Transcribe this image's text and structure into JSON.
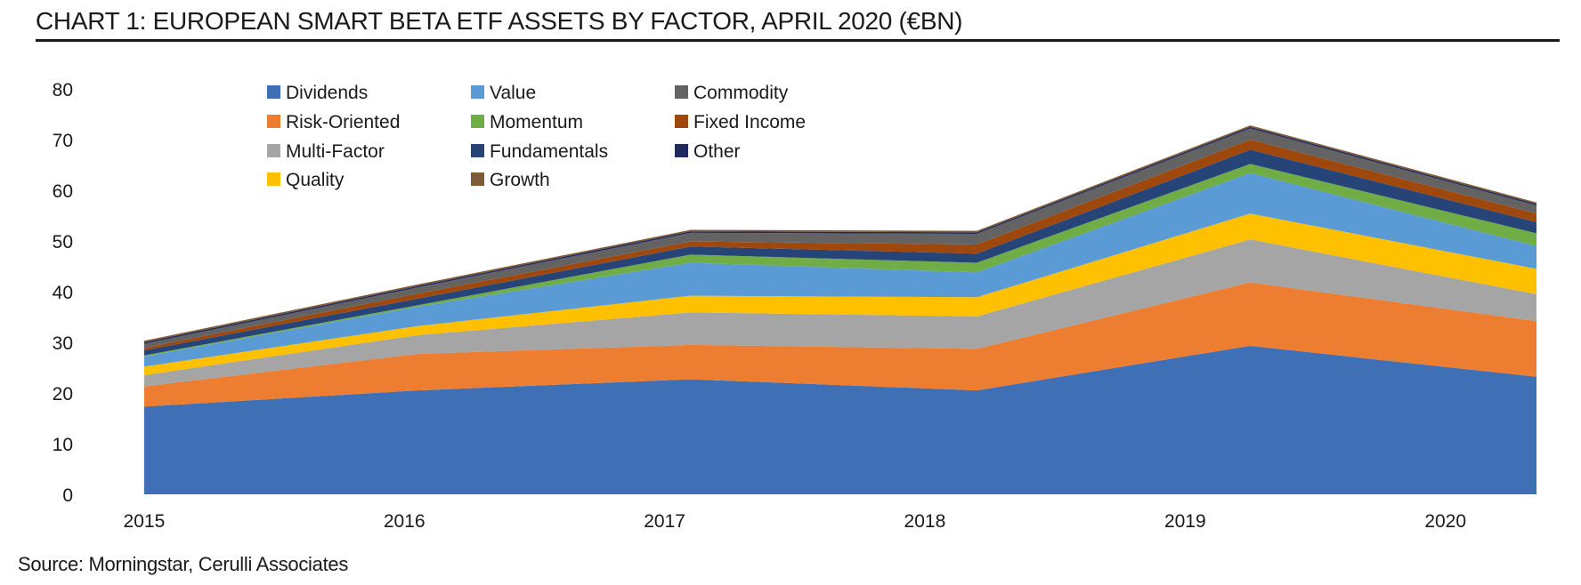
{
  "chart_data": {
    "type": "area",
    "stacked": true,
    "title": "CHART 1: EUROPEAN SMART BETA ETF ASSETS BY FACTOR, APRIL 2020 (€BN)",
    "source": "Source: Morningstar, Cerulli Associates",
    "xlabel": "",
    "ylabel": "",
    "ylim": [
      0,
      80
    ],
    "yticks": [
      0,
      10,
      20,
      30,
      40,
      50,
      60,
      70,
      80
    ],
    "ytick_labels": [
      "0",
      "10",
      "20",
      "30",
      "40",
      "50",
      "60",
      "70",
      "80"
    ],
    "x": [
      2015,
      2016.05,
      2017.1,
      2018.2,
      2019.25,
      2020.35
    ],
    "xticks": [
      2015,
      2016,
      2017,
      2018,
      2019,
      2020
    ],
    "xtick_labels": [
      "2015",
      "2016",
      "2017",
      "2018",
      "2019",
      "2020"
    ],
    "x_range": [
      2014.85,
      2020.35
    ],
    "grid": false,
    "legend_position": "top-left",
    "series": [
      {
        "name": "Dividends",
        "color": "#3F6FB5",
        "values": [
          17.3,
          20.5,
          22.7,
          20.5,
          29.3,
          23.2
        ]
      },
      {
        "name": "Risk-Oriented",
        "color": "#ED7D31",
        "values": [
          4.0,
          7.2,
          6.8,
          8.2,
          12.5,
          11.0
        ]
      },
      {
        "name": "Multi-Factor",
        "color": "#A5A5A5",
        "values": [
          2.2,
          3.7,
          6.4,
          6.4,
          8.5,
          5.3
        ]
      },
      {
        "name": "Quality",
        "color": "#FFC000",
        "values": [
          1.7,
          1.8,
          3.3,
          3.8,
          5.1,
          5.0
        ]
      },
      {
        "name": "Value",
        "color": "#5B9BD5",
        "values": [
          2.0,
          3.8,
          6.5,
          4.9,
          8.0,
          4.5
        ]
      },
      {
        "name": "Momentum",
        "color": "#70AD47",
        "values": [
          0.2,
          0.3,
          1.6,
          1.9,
          1.8,
          2.5
        ]
      },
      {
        "name": "Fundamentals",
        "color": "#264478",
        "values": [
          1.0,
          1.3,
          1.6,
          1.8,
          2.8,
          2.2
        ]
      },
      {
        "name": "Fixed Income",
        "color": "#9E480E",
        "values": [
          0.5,
          1.0,
          1.0,
          1.8,
          2.0,
          1.7
        ]
      },
      {
        "name": "Commodity",
        "color": "#636363",
        "values": [
          0.8,
          1.2,
          1.7,
          2.1,
          2.2,
          1.6
        ]
      },
      {
        "name": "Other",
        "color": "#1F2A5E",
        "values": [
          0.3,
          0.3,
          0.3,
          0.3,
          0.3,
          0.3
        ]
      },
      {
        "name": "Growth",
        "color": "#7E5A36",
        "values": [
          0.3,
          0.3,
          0.3,
          0.3,
          0.3,
          0.3
        ]
      }
    ],
    "legend_order": [
      [
        "Dividends",
        "Value",
        "Commodity"
      ],
      [
        "Risk-Oriented",
        "Momentum",
        "Fixed Income"
      ],
      [
        "Multi-Factor",
        "Fundamentals",
        "Other"
      ],
      [
        "Quality",
        "Growth"
      ]
    ]
  }
}
